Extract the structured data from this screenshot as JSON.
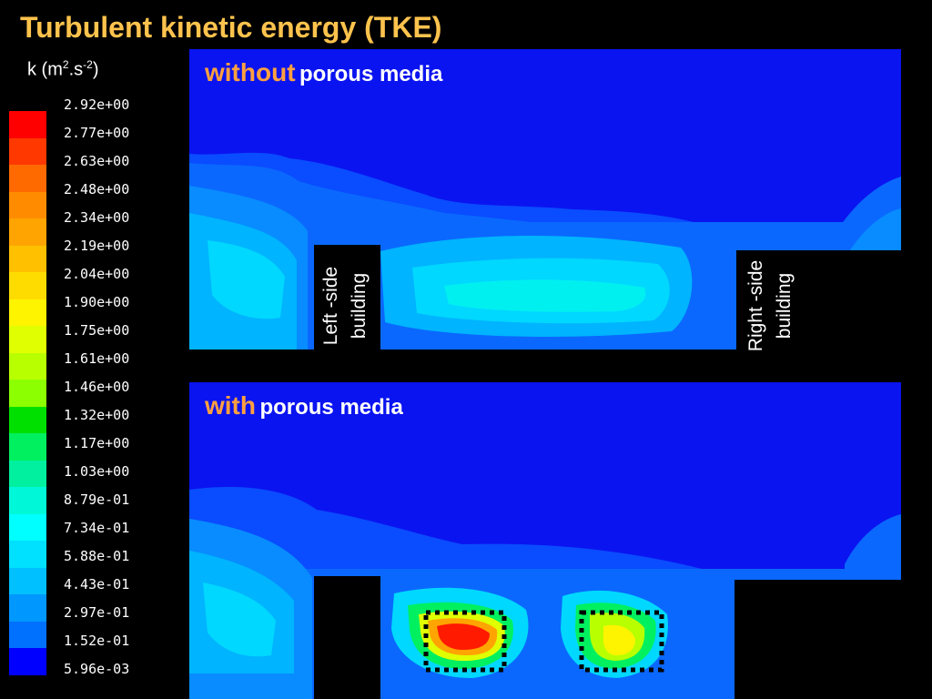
{
  "title": "Turbulent kinetic energy (TKE)",
  "units": {
    "base": "k (m",
    "exp1": "2",
    "mid": ".s",
    "exp2": "-2",
    "end": ")"
  },
  "colorbar": {
    "ticks": [
      "2.92e+00",
      "2.77e+00",
      "2.63e+00",
      "2.48e+00",
      "2.34e+00",
      "2.19e+00",
      "2.04e+00",
      "1.90e+00",
      "1.75e+00",
      "1.61e+00",
      "1.46e+00",
      "1.32e+00",
      "1.17e+00",
      "1.03e+00",
      "8.79e-01",
      "7.34e-01",
      "5.88e-01",
      "4.43e-01",
      "2.97e-01",
      "1.52e-01",
      "5.96e-03"
    ],
    "colors": [
      "#ff0000",
      "#ff3800",
      "#ff6a00",
      "#ff8c00",
      "#ffa400",
      "#ffc000",
      "#ffdc00",
      "#fff400",
      "#e0ff00",
      "#b8ff00",
      "#8cff00",
      "#00e000",
      "#00f060",
      "#00f0a0",
      "#00f8d8",
      "#00ffff",
      "#00e0ff",
      "#00c0ff",
      "#0098ff",
      "#0070ff",
      "#0000ff"
    ]
  },
  "panels": {
    "top": {
      "label_highlight": "without",
      "label_rest": "porous media"
    },
    "bottom": {
      "label_highlight": "with",
      "label_rest": "porous media"
    }
  },
  "buildings": {
    "left": {
      "line1": "Left -side",
      "line2": "building"
    },
    "right": {
      "line1": "Right -side",
      "line2": "building"
    }
  }
}
